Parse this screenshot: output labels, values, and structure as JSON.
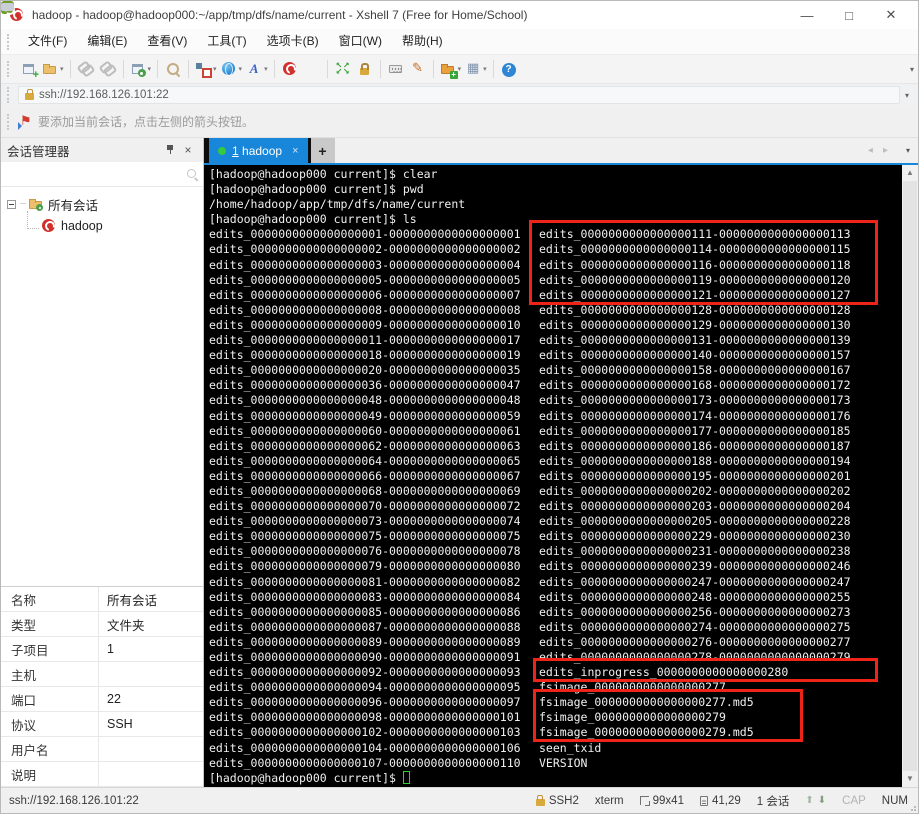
{
  "window": {
    "title": "hadoop - hadoop@hadoop000:~/app/tmp/dfs/name/current - Xshell 7 (Free for Home/School)",
    "controls": {
      "minimize": "—",
      "maximize": "□",
      "close": "✕"
    }
  },
  "menu": {
    "items": [
      "文件(F)",
      "编辑(E)",
      "查看(V)",
      "工具(T)",
      "选项卡(B)",
      "窗口(W)",
      "帮助(H)"
    ]
  },
  "toolbar": {
    "buttons": [
      {
        "icon": "new-session-icon"
      },
      {
        "icon": "open-session-icon",
        "dropdown": true
      },
      {
        "separator": true
      },
      {
        "icon": "disconnect-icon"
      },
      {
        "icon": "reconnect-icon"
      },
      {
        "separator": true
      },
      {
        "icon": "session-properties-icon",
        "dropdown": true
      },
      {
        "separator": true
      },
      {
        "icon": "find-icon"
      },
      {
        "separator": true
      },
      {
        "icon": "compose-icon",
        "dropdown": true
      },
      {
        "icon": "encoding-icon",
        "dropdown": true
      },
      {
        "icon": "font-icon",
        "dropdown": true
      },
      {
        "separator": true
      },
      {
        "icon": "xshell-icon"
      },
      {
        "icon": "xftp-icon"
      },
      {
        "separator": true
      },
      {
        "icon": "fullscreen-icon"
      },
      {
        "icon": "lock-icon"
      },
      {
        "separator": true
      },
      {
        "icon": "virtual-keyboard-icon"
      },
      {
        "icon": "highlight-pen-icon"
      },
      {
        "separator": true
      },
      {
        "icon": "new-file-icon",
        "dropdown": true
      },
      {
        "icon": "layout-icon",
        "dropdown": true
      },
      {
        "separator": true
      },
      {
        "icon": "help-icon"
      },
      {
        "icon": "chat-icon"
      }
    ]
  },
  "address_bar": {
    "url": "ssh://192.168.126.101:22"
  },
  "notice_bar": {
    "text": "要添加当前会话，点击左侧的箭头按钮。"
  },
  "session_manager": {
    "title": "会话管理器",
    "search": {
      "placeholder": "",
      "value": ""
    },
    "tree": [
      {
        "label": "所有会话",
        "icon": "folder-icon",
        "children": [
          {
            "label": "hadoop",
            "icon": "xshell-session-icon"
          }
        ]
      }
    ]
  },
  "properties": {
    "rows": [
      {
        "label": "名称",
        "value": "所有会话"
      },
      {
        "label": "类型",
        "value": "文件夹"
      },
      {
        "label": "子项目",
        "value": "1"
      },
      {
        "label": "主机",
        "value": ""
      },
      {
        "label": "端口",
        "value": "22"
      },
      {
        "label": "协议",
        "value": "SSH"
      },
      {
        "label": "用户名",
        "value": ""
      },
      {
        "label": "说明",
        "value": ""
      }
    ]
  },
  "tabs": {
    "active": {
      "index": "1",
      "label": "hadoop",
      "close": "×",
      "status_icon": "green-dot-icon"
    },
    "new_tab": "+"
  },
  "terminal": {
    "pre_lines": [
      "[hadoop@hadoop000 current]$ clear",
      "[hadoop@hadoop000 current]$ pwd",
      "/home/hadoop/app/tmp/dfs/name/current",
      "[hadoop@hadoop000 current]$ ls"
    ],
    "file_rows": [
      [
        "edits_0000000000000000001-0000000000000000001",
        "edits_0000000000000000111-0000000000000000113"
      ],
      [
        "edits_0000000000000000002-0000000000000000002",
        "edits_0000000000000000114-0000000000000000115"
      ],
      [
        "edits_0000000000000000003-0000000000000000004",
        "edits_0000000000000000116-0000000000000000118"
      ],
      [
        "edits_0000000000000000005-0000000000000000005",
        "edits_0000000000000000119-0000000000000000120"
      ],
      [
        "edits_0000000000000000006-0000000000000000007",
        "edits_0000000000000000121-0000000000000000127"
      ],
      [
        "edits_0000000000000000008-0000000000000000008",
        "edits_0000000000000000128-0000000000000000128"
      ],
      [
        "edits_0000000000000000009-0000000000000000010",
        "edits_0000000000000000129-0000000000000000130"
      ],
      [
        "edits_0000000000000000011-0000000000000000017",
        "edits_0000000000000000131-0000000000000000139"
      ],
      [
        "edits_0000000000000000018-0000000000000000019",
        "edits_0000000000000000140-0000000000000000157"
      ],
      [
        "edits_0000000000000000020-0000000000000000035",
        "edits_0000000000000000158-0000000000000000167"
      ],
      [
        "edits_0000000000000000036-0000000000000000047",
        "edits_0000000000000000168-0000000000000000172"
      ],
      [
        "edits_0000000000000000048-0000000000000000048",
        "edits_0000000000000000173-0000000000000000173"
      ],
      [
        "edits_0000000000000000049-0000000000000000059",
        "edits_0000000000000000174-0000000000000000176"
      ],
      [
        "edits_0000000000000000060-0000000000000000061",
        "edits_0000000000000000177-0000000000000000185"
      ],
      [
        "edits_0000000000000000062-0000000000000000063",
        "edits_0000000000000000186-0000000000000000187"
      ],
      [
        "edits_0000000000000000064-0000000000000000065",
        "edits_0000000000000000188-0000000000000000194"
      ],
      [
        "edits_0000000000000000066-0000000000000000067",
        "edits_0000000000000000195-0000000000000000201"
      ],
      [
        "edits_0000000000000000068-0000000000000000069",
        "edits_0000000000000000202-0000000000000000202"
      ],
      [
        "edits_0000000000000000070-0000000000000000072",
        "edits_0000000000000000203-0000000000000000204"
      ],
      [
        "edits_0000000000000000073-0000000000000000074",
        "edits_0000000000000000205-0000000000000000228"
      ],
      [
        "edits_0000000000000000075-0000000000000000075",
        "edits_0000000000000000229-0000000000000000230"
      ],
      [
        "edits_0000000000000000076-0000000000000000078",
        "edits_0000000000000000231-0000000000000000238"
      ],
      [
        "edits_0000000000000000079-0000000000000000080",
        "edits_0000000000000000239-0000000000000000246"
      ],
      [
        "edits_0000000000000000081-0000000000000000082",
        "edits_0000000000000000247-0000000000000000247"
      ],
      [
        "edits_0000000000000000083-0000000000000000084",
        "edits_0000000000000000248-0000000000000000255"
      ],
      [
        "edits_0000000000000000085-0000000000000000086",
        "edits_0000000000000000256-0000000000000000273"
      ],
      [
        "edits_0000000000000000087-0000000000000000088",
        "edits_0000000000000000274-0000000000000000275"
      ],
      [
        "edits_0000000000000000089-0000000000000000089",
        "edits_0000000000000000276-0000000000000000277"
      ],
      [
        "edits_0000000000000000090-0000000000000000091",
        "edits_0000000000000000278-0000000000000000279"
      ],
      [
        "edits_0000000000000000092-0000000000000000093",
        "edits_inprogress_0000000000000000280"
      ],
      [
        "edits_0000000000000000094-0000000000000000095",
        "fsimage_0000000000000000277"
      ],
      [
        "edits_0000000000000000096-0000000000000000097",
        "fsimage_0000000000000000277.md5"
      ],
      [
        "edits_0000000000000000098-0000000000000000101",
        "fsimage_0000000000000000279"
      ],
      [
        "edits_0000000000000000102-0000000000000000103",
        "fsimage_0000000000000000279.md5"
      ],
      [
        "edits_0000000000000000104-0000000000000000106",
        "seen_txid"
      ],
      [
        "edits_0000000000000000107-0000000000000000110",
        "VERSION"
      ]
    ],
    "prompt": "[hadoop@hadoop000 current]$"
  },
  "status_bar": {
    "url": "ssh://192.168.126.101:22",
    "protocol": "SSH2",
    "term_type": "xterm",
    "size": "99x41",
    "cursor": "41,29",
    "sessions": "1 会话",
    "caps": "CAP",
    "num": "NUM"
  },
  "colors": {
    "accent_blue": "#1886d9",
    "terminal_bg": "#000000",
    "terminal_fg": "#f0f0f0",
    "highlight_red": "#ee2418",
    "tab_green": "#35c93f",
    "cursor_green": "#2bd42b"
  },
  "icons": {
    "app-logo-icon": "red swirl circle",
    "new-session-icon": "window with green plus",
    "open-session-icon": "folder",
    "disconnect-icon": "broken chain link",
    "reconnect-icon": "chain link",
    "session-properties-icon": "window with green gear",
    "find-icon": "magnifier",
    "compose-icon": "blue square with red outline square",
    "encoding-icon": "blue globe",
    "font-icon": "italic letter A",
    "xshell-icon": "red swirl",
    "xftp-icon": "green box with white ring",
    "fullscreen-icon": "green expand arrows",
    "lock-icon": "gold padlock",
    "virtual-keyboard-icon": "keyboard",
    "highlight-pen-icon": "pen",
    "new-file-icon": "orange folder with plus",
    "layout-icon": "grid",
    "help-icon": "blue circle question mark",
    "chat-icon": "speech bubble",
    "search-icon": "magnifier",
    "pin-icon": "push pin",
    "close-icon": "x",
    "flag-icon": "red flag with blue arrow",
    "folder-icon": "yellow folder with green gear",
    "xshell-session-icon": "red swirl",
    "green-dot-icon": "green connected dot",
    "ssh-lock-icon": "gold padlock",
    "resize-icon": "corner resize arrows",
    "cursor-pos-icon": "cursor position page",
    "scroll-up-icon": "up arrow",
    "scroll-down-icon": "down arrow"
  }
}
